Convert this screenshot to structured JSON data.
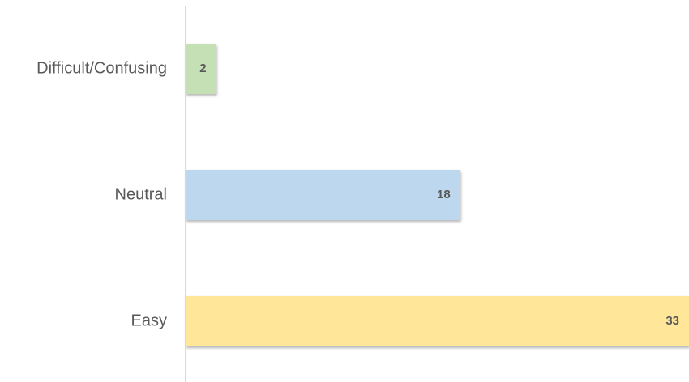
{
  "chart_data": {
    "type": "bar",
    "orientation": "horizontal",
    "categories": [
      "Difficult/Confusing",
      "Neutral",
      "Easy"
    ],
    "values": [
      2,
      18,
      33
    ],
    "colors": [
      "#c5e0b4",
      "#bdd7ee",
      "#ffe699"
    ]
  }
}
